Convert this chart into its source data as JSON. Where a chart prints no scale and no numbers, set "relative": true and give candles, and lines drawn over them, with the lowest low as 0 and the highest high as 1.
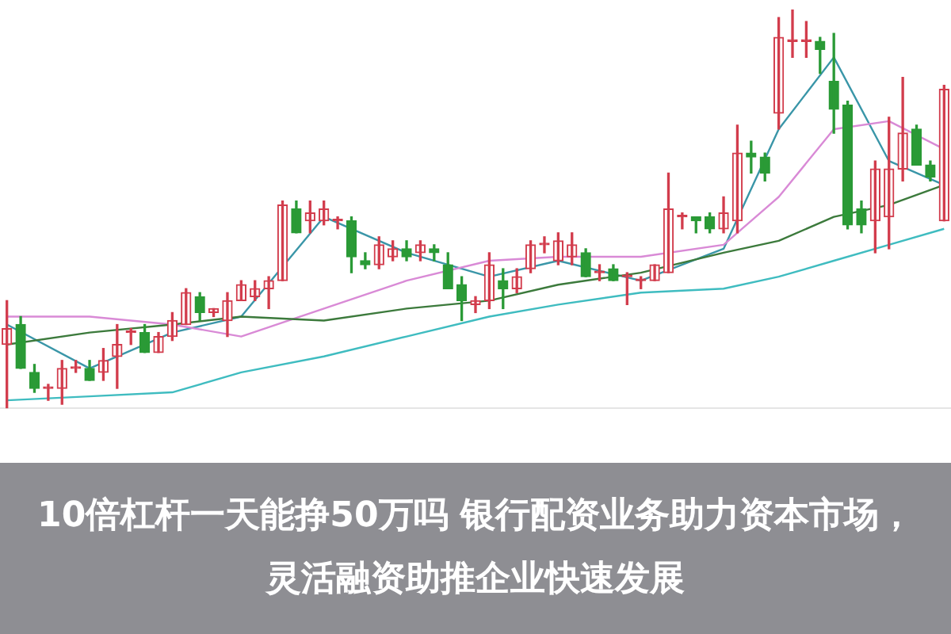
{
  "chart_data": {
    "type": "candlestick",
    "title": "10倍杠杆一天能挣50万吗 银行配资业务助力资本市场，灵活融资助推企业快速发展",
    "relative": true,
    "legend": false,
    "categories": [
      null,
      null,
      null,
      null,
      null,
      null,
      null,
      null,
      null,
      null,
      null,
      null,
      null,
      null,
      null,
      null,
      null,
      null,
      null,
      null,
      null,
      null,
      null,
      null,
      null,
      null,
      null,
      null,
      null,
      null,
      null,
      null,
      null,
      null,
      null,
      null,
      null,
      null,
      null,
      null,
      null,
      null,
      null,
      null,
      null,
      null,
      null,
      null,
      null,
      null,
      null,
      null,
      null,
      null,
      null,
      null,
      null,
      null,
      null,
      null,
      null,
      null,
      null,
      null,
      null,
      null,
      null,
      null,
      null
    ],
    "ohlc": [
      [
        0.16,
        0.27,
        0,
        0.2
      ],
      [
        0.21,
        0.23,
        0.1,
        0.1
      ],
      [
        0.09,
        0.11,
        0.04,
        0.05
      ],
      [
        0.05,
        0.06,
        0.02,
        0.05
      ],
      [
        0.05,
        0.12,
        0.01,
        0.1
      ],
      [
        0.1,
        0.12,
        0.09,
        0.1
      ],
      [
        0.1,
        0.12,
        0.07,
        0.07
      ],
      [
        0.09,
        0.15,
        0.07,
        0.12
      ],
      [
        0.13,
        0.21,
        0.05,
        0.16
      ],
      [
        0.19,
        0.2,
        0.16,
        0.19
      ],
      [
        0.19,
        0.21,
        0.14,
        0.14
      ],
      [
        0.14,
        0.19,
        0.14,
        0.18
      ],
      [
        0.18,
        0.24,
        0.17,
        0.22
      ],
      [
        0.21,
        0.3,
        0.21,
        0.29
      ],
      [
        0.28,
        0.29,
        0.22,
        0.24
      ],
      [
        0.24,
        0.25,
        0.23,
        0.25
      ],
      [
        0.22,
        0.29,
        0.18,
        0.27
      ],
      [
        0.27,
        0.32,
        0.27,
        0.31
      ],
      [
        0.28,
        0.32,
        0.27,
        0.3
      ],
      [
        0.3,
        0.33,
        0.25,
        0.32
      ],
      [
        0.32,
        0.52,
        0.32,
        0.51
      ],
      [
        0.5,
        0.52,
        0.44,
        0.44
      ],
      [
        0.47,
        0.52,
        0.44,
        0.49
      ],
      [
        0.47,
        0.52,
        0.46,
        0.5
      ],
      [
        0.47,
        0.48,
        0.45,
        0.47
      ],
      [
        0.47,
        0.48,
        0.34,
        0.38
      ],
      [
        0.37,
        0.39,
        0.35,
        0.36
      ],
      [
        0.36,
        0.43,
        0.35,
        0.41
      ],
      [
        0.38,
        0.42,
        0.37,
        0.4
      ],
      [
        0.4,
        0.42,
        0.37,
        0.38
      ],
      [
        0.39,
        0.42,
        0.37,
        0.41
      ],
      [
        0.4,
        0.41,
        0.37,
        0.39
      ],
      [
        0.36,
        0.39,
        0.3,
        0.3
      ],
      [
        0.31,
        0.33,
        0.22,
        0.27
      ],
      [
        0.26,
        0.28,
        0.24,
        0.27
      ],
      [
        0.27,
        0.39,
        0.25,
        0.36
      ],
      [
        0.32,
        0.35,
        0.25,
        0.3
      ],
      [
        0.3,
        0.35,
        0.29,
        0.33
      ],
      [
        0.35,
        0.42,
        0.34,
        0.41
      ],
      [
        0.41,
        0.43,
        0.39,
        0.41
      ],
      [
        0.37,
        0.44,
        0.36,
        0.42
      ],
      [
        0.38,
        0.44,
        0.36,
        0.41
      ],
      [
        0.39,
        0.4,
        0.33,
        0.33
      ],
      [
        0.34,
        0.36,
        0.32,
        0.34
      ],
      [
        0.35,
        0.36,
        0.32,
        0.32
      ],
      [
        0.33,
        0.34,
        0.26,
        0.33
      ],
      [
        0.32,
        0.33,
        0.3,
        0.32
      ],
      [
        0.32,
        0.36,
        0.32,
        0.36
      ],
      [
        0.34,
        0.59,
        0.34,
        0.5
      ],
      [
        0.48,
        0.49,
        0.45,
        0.48
      ],
      [
        0.48,
        0.48,
        0.44,
        0.47
      ],
      [
        0.48,
        0.49,
        0.44,
        0.45
      ],
      [
        0.45,
        0.53,
        0.44,
        0.49
      ],
      [
        0.47,
        0.71,
        0.44,
        0.64
      ],
      [
        0.64,
        0.67,
        0.59,
        0.63
      ],
      [
        0.63,
        0.64,
        0.57,
        0.59
      ],
      [
        0.74,
        0.98,
        0.7,
        0.93
      ],
      [
        0.92,
        1,
        0.88,
        0.92
      ],
      [
        0.92,
        0.97,
        0.88,
        0.92
      ],
      [
        0.92,
        0.93,
        0.84,
        0.9
      ],
      [
        0.82,
        0.94,
        0.69,
        0.75
      ],
      [
        0.76,
        0.77,
        0.45,
        0.46
      ],
      [
        0.5,
        0.52,
        0.44,
        0.46
      ],
      [
        0.47,
        0.62,
        0.39,
        0.6
      ],
      [
        0.48,
        0.73,
        0.4,
        0.6
      ],
      [
        0.6,
        0.83,
        0.57,
        0.69
      ],
      [
        0.7,
        0.71,
        0.61,
        0.61
      ],
      [
        0.61,
        0.62,
        0.57,
        0.58
      ],
      [
        0.47,
        0.81,
        0.47,
        0.8
      ]
    ],
    "colors": [
      "#d23c4c",
      "#2a9a36",
      "#2a9a36",
      "#d23c4c",
      "#d23c4c",
      "#d23c4c",
      "#2a9a36",
      "#d23c4c",
      "#d23c4c",
      "#d23c4c",
      "#2a9a36",
      "#d23c4c",
      "#d23c4c",
      "#d23c4c",
      "#2a9a36",
      "#d23c4c",
      "#d23c4c",
      "#d23c4c",
      "#d23c4c",
      "#d23c4c",
      "#d23c4c",
      "#2a9a36",
      "#d23c4c",
      "#d23c4c",
      "#d23c4c",
      "#2a9a36",
      "#2a9a36",
      "#d23c4c",
      "#d23c4c",
      "#2a9a36",
      "#d23c4c",
      "#2a9a36",
      "#2a9a36",
      "#2a9a36",
      "#d23c4c",
      "#d23c4c",
      "#2a9a36",
      "#d23c4c",
      "#d23c4c",
      "#d23c4c",
      "#d23c4c",
      "#d23c4c",
      "#2a9a36",
      "#d23c4c",
      "#2a9a36",
      "#d23c4c",
      "#d23c4c",
      "#d23c4c",
      "#d23c4c",
      "#d23c4c",
      "#2a9a36",
      "#2a9a36",
      "#d23c4c",
      "#d23c4c",
      "#2a9a36",
      "#2a9a36",
      "#d23c4c",
      "#d23c4c",
      "#d23c4c",
      "#2a9a36",
      "#2a9a36",
      "#2a9a36",
      "#2a9a36",
      "#d23c4c",
      "#d23c4c",
      "#d23c4c",
      "#2a9a36",
      "#2a9a36",
      "#d23c4c"
    ],
    "series": [
      {
        "type": "line",
        "color": "#3fbcc0",
        "values": [
          0.02,
          null,
          null,
          null,
          null,
          null,
          0.03,
          null,
          null,
          null,
          null,
          null,
          0.04,
          null,
          null,
          null,
          null,
          0.09,
          null,
          null,
          null,
          null,
          null,
          0.13,
          null,
          null,
          null,
          null,
          null,
          0.18,
          null,
          null,
          null,
          null,
          null,
          0.23,
          null,
          null,
          null,
          null,
          0.26,
          null,
          null,
          null,
          null,
          null,
          0.29,
          null,
          null,
          null,
          null,
          null,
          0.3,
          null,
          null,
          null,
          0.33,
          null,
          null,
          null,
          0.37,
          null,
          null,
          null,
          0.41,
          null,
          null,
          null,
          0.45
        ]
      },
      {
        "type": "line",
        "color": "#3c7a3c",
        "values": [
          0.16,
          null,
          null,
          null,
          null,
          null,
          0.19,
          null,
          null,
          null,
          null,
          null,
          0.21,
          null,
          null,
          null,
          null,
          0.23,
          null,
          null,
          null,
          null,
          null,
          0.22,
          null,
          null,
          null,
          null,
          null,
          0.25,
          null,
          null,
          null,
          null,
          null,
          0.27,
          null,
          null,
          null,
          null,
          0.31,
          null,
          null,
          null,
          null,
          null,
          0.34,
          null,
          null,
          null,
          null,
          null,
          0.39,
          null,
          null,
          null,
          0.42,
          null,
          null,
          null,
          0.48,
          null,
          null,
          null,
          0.51,
          null,
          null,
          null,
          0.56
        ]
      },
      {
        "type": "line",
        "color": "#d98ad6",
        "values": [
          0.23,
          null,
          null,
          null,
          null,
          null,
          0.23,
          null,
          null,
          null,
          null,
          null,
          0.21,
          null,
          null,
          null,
          null,
          0.18,
          null,
          null,
          null,
          null,
          null,
          0.25,
          null,
          null,
          null,
          null,
          null,
          0.32,
          null,
          null,
          null,
          null,
          null,
          0.37,
          null,
          null,
          null,
          null,
          0.38,
          null,
          null,
          null,
          null,
          null,
          0.38,
          null,
          null,
          null,
          null,
          null,
          0.41,
          null,
          null,
          null,
          0.53,
          null,
          null,
          null,
          0.7,
          null,
          null,
          null,
          0.72,
          null,
          null,
          null,
          0.65
        ]
      },
      {
        "type": "line",
        "color": "#3a96a8",
        "values": [
          0.21,
          null,
          null,
          null,
          null,
          null,
          0.1,
          null,
          null,
          null,
          null,
          null,
          0.19,
          null,
          null,
          null,
          null,
          0.23,
          null,
          null,
          null,
          null,
          null,
          0.48,
          null,
          null,
          null,
          null,
          null,
          0.39,
          null,
          null,
          null,
          null,
          null,
          0.33,
          null,
          null,
          null,
          null,
          0.37,
          null,
          null,
          null,
          null,
          null,
          0.32,
          null,
          null,
          null,
          null,
          null,
          0.4,
          null,
          null,
          null,
          0.7,
          null,
          null,
          null,
          0.88,
          null,
          null,
          null,
          0.62,
          null,
          null,
          null,
          0.56
        ]
      }
    ]
  }
}
